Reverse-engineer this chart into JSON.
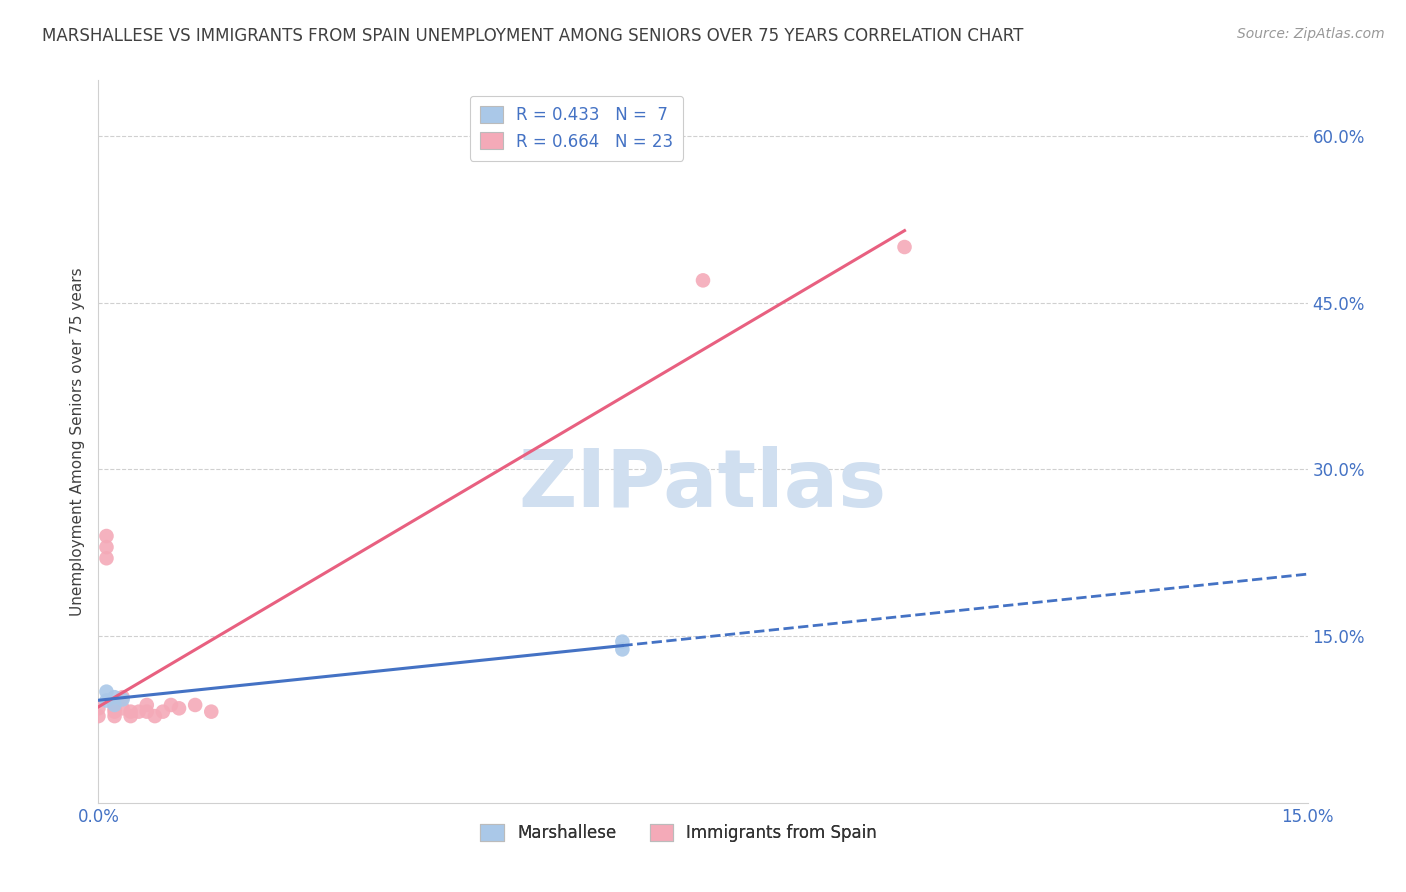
{
  "title": "MARSHALLESE VS IMMIGRANTS FROM SPAIN UNEMPLOYMENT AMONG SENIORS OVER 75 YEARS CORRELATION CHART",
  "source": "Source: ZipAtlas.com",
  "ylabel": "Unemployment Among Seniors over 75 years",
  "xlim": [
    0.0,
    0.15
  ],
  "ylim": [
    0.0,
    0.65
  ],
  "legend_R1": "R = 0.433",
  "legend_N1": "N =  7",
  "legend_R2": "R = 0.664",
  "legend_N2": "N = 23",
  "legend_label1": "Marshallese",
  "legend_label2": "Immigrants from Spain",
  "marshallese_x": [
    0.001,
    0.001,
    0.002,
    0.002,
    0.003,
    0.065,
    0.065
  ],
  "marshallese_y": [
    0.1,
    0.092,
    0.095,
    0.088,
    0.093,
    0.145,
    0.138
  ],
  "spain_x": [
    0.0,
    0.0,
    0.001,
    0.001,
    0.001,
    0.002,
    0.002,
    0.002,
    0.003,
    0.003,
    0.004,
    0.004,
    0.005,
    0.006,
    0.006,
    0.007,
    0.008,
    0.009,
    0.01,
    0.012,
    0.014,
    0.075,
    0.1
  ],
  "spain_y": [
    0.085,
    0.078,
    0.22,
    0.23,
    0.24,
    0.085,
    0.082,
    0.078,
    0.095,
    0.085,
    0.082,
    0.078,
    0.082,
    0.088,
    0.082,
    0.078,
    0.082,
    0.088,
    0.085,
    0.088,
    0.082,
    0.47,
    0.5
  ],
  "blue_color": "#aac8e8",
  "pink_color": "#f4aab8",
  "blue_line_color": "#4472c4",
  "pink_line_color": "#e86080",
  "watermark_text": "ZIPatlas",
  "watermark_color": "#d0dff0",
  "bg_color": "#ffffff",
  "grid_color": "#d0d0d0",
  "title_color": "#404040",
  "axis_label_color": "#404040",
  "tick_color": "#4472c4",
  "right_tick_color": "#4472c4"
}
